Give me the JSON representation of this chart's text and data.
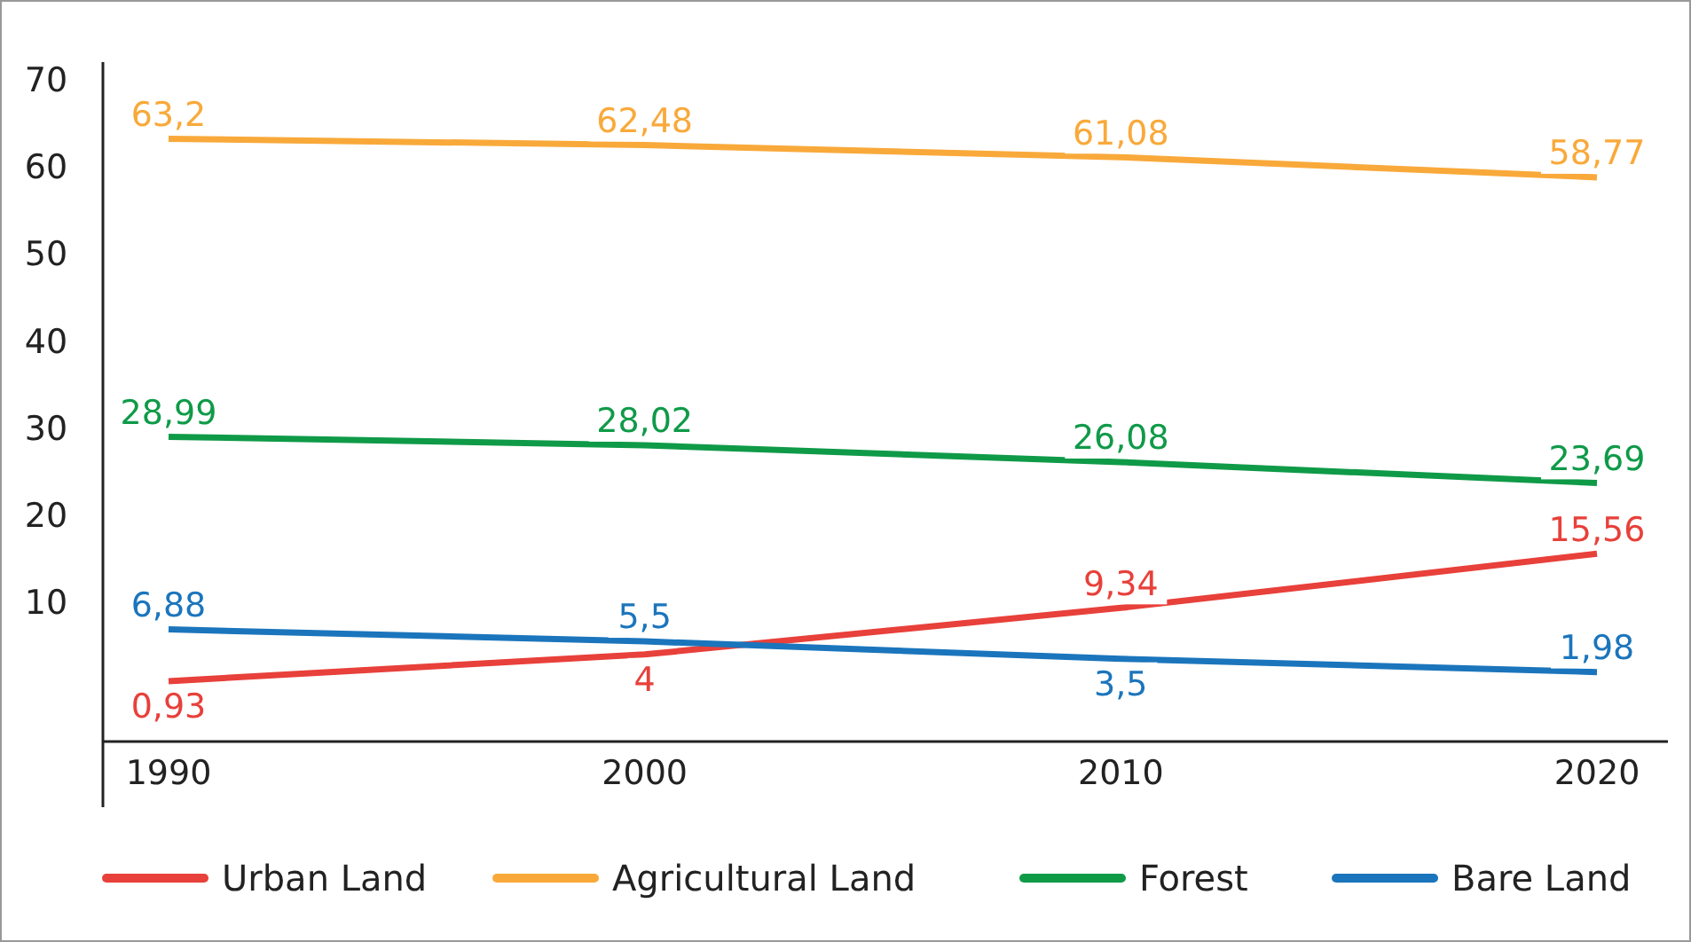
{
  "chart_data": {
    "type": "line",
    "categories": [
      "1990",
      "2000",
      "2010",
      "2020"
    ],
    "ylim": [
      -6,
      72
    ],
    "yticks": [
      10,
      20,
      30,
      40,
      50,
      60,
      70
    ],
    "grid": false,
    "legend": "bottom",
    "marker": "none",
    "line_style": "solid",
    "series": [
      {
        "name": "Urban Land",
        "color": "#e8403a",
        "values": [
          0.93,
          4,
          9.34,
          15.56
        ],
        "value_labels": [
          "0,93",
          "4",
          "9,34",
          "15,56"
        ]
      },
      {
        "name": "Agricultural Land",
        "color": "#f9a93a",
        "values": [
          63.2,
          62.48,
          61.08,
          58.77
        ],
        "value_labels": [
          "63,2",
          "62,48",
          "61,08",
          "58,77"
        ]
      },
      {
        "name": "Forest",
        "color": "#0f9a48",
        "values": [
          28.99,
          28.02,
          26.08,
          23.69
        ],
        "value_labels": [
          "28,99",
          "28,02",
          "26,08",
          "23,69"
        ]
      },
      {
        "name": "Bare Land",
        "color": "#1b75bc",
        "values": [
          6.88,
          5.5,
          3.5,
          1.98
        ],
        "value_labels": [
          "6,88",
          "5,5",
          "3,5",
          "1,98"
        ]
      }
    ]
  }
}
